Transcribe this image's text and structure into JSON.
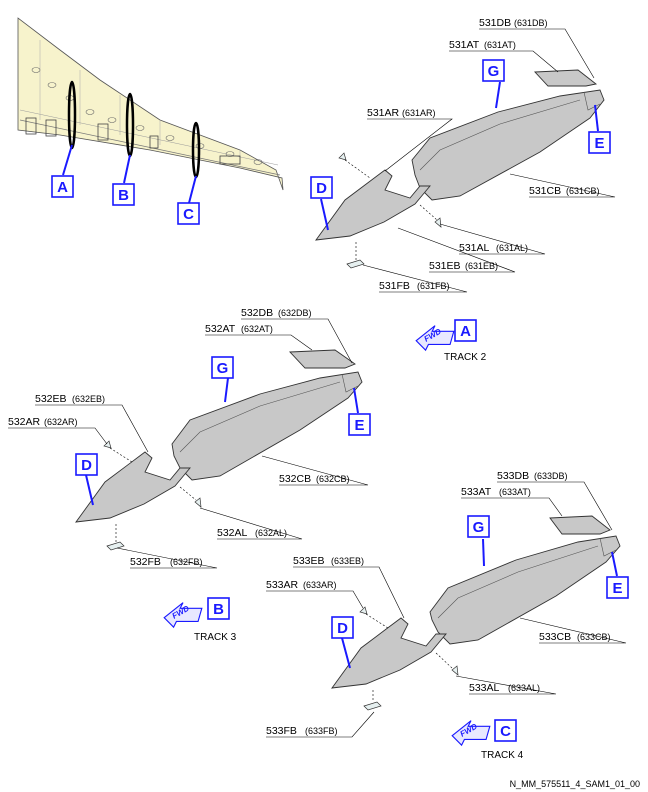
{
  "keys": {
    "A": "A",
    "B": "B",
    "C": "C",
    "D": "D",
    "E": "E",
    "G": "G"
  },
  "track1": {
    "db": "531DB",
    "db_alt": "(631DB)",
    "at": "531AT",
    "at_alt": "(631AT)",
    "ar": "531AR",
    "ar_alt": "(631AR)",
    "cb": "531CB",
    "cb_alt": "(631CB)",
    "al": "531AL",
    "al_alt": "(631AL)",
    "eb": "531EB",
    "eb_alt": "(631EB)",
    "fb": "531FB",
    "fb_alt": "(631FB)"
  },
  "track2": {
    "db": "532DB",
    "db_alt": "(632DB)",
    "at": "532AT",
    "at_alt": "(632AT)",
    "eb": "532EB",
    "eb_alt": "(632EB)",
    "ar": "532AR",
    "ar_alt": "(632AR)",
    "cb": "532CB",
    "cb_alt": "(632CB)",
    "al": "532AL",
    "al_alt": "(632AL)",
    "fb": "532FB",
    "fb_alt": "(632FB)"
  },
  "track3": {
    "db": "533DB",
    "db_alt": "(633DB)",
    "at": "533AT",
    "at_alt": "(633AT)",
    "eb": "533EB",
    "eb_alt": "(633EB)",
    "ar": "533AR",
    "ar_alt": "(633AR)",
    "cb": "533CB",
    "cb_alt": "(633CB)",
    "al": "533AL",
    "al_alt": "(633AL)",
    "fb": "533FB",
    "fb_alt": "(633FB)"
  },
  "views": {
    "a_letter": "A",
    "a_track": "TRACK 2",
    "b_letter": "B",
    "b_track": "TRACK 3",
    "c_letter": "C",
    "c_track": "TRACK 4",
    "fwd": "FWD"
  },
  "footer": "N_MM_575511_4_SAM1_01_00",
  "colors": {
    "accent": "#1a1aff",
    "fairing": "#c8c8c8",
    "wing": "#f7f3cc"
  }
}
